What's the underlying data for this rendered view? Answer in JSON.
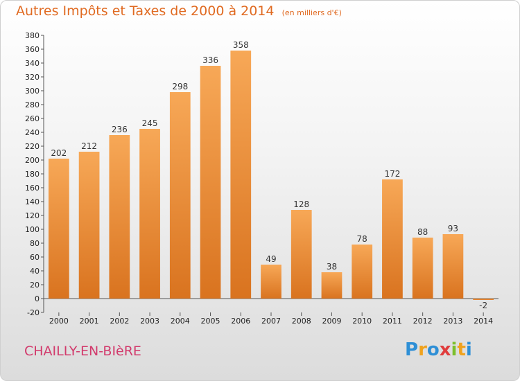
{
  "title": {
    "main": "Autres Impôts et Taxes de 2000 à 2014",
    "unit": "(en milliers d'€)"
  },
  "commune": "CHAILLY-EN-BIèRE",
  "logo": {
    "text": "Proxiti",
    "letters": [
      {
        "ch": "P",
        "color": "#2e8fd6"
      },
      {
        "ch": "r",
        "color": "#f0a21d"
      },
      {
        "ch": "o",
        "color": "#2e8fd6"
      },
      {
        "ch": "x",
        "color": "#e03c3c"
      },
      {
        "ch": "i",
        "color": "#7cbf2c"
      },
      {
        "ch": "t",
        "color": "#f0a21d"
      },
      {
        "ch": "i",
        "color": "#2e8fd6"
      }
    ]
  },
  "colors": {
    "bar_light": "#f7a857",
    "bar_dark": "#d9731f",
    "axis": "#555555",
    "grid": "#dddddd",
    "title": "#e06a21",
    "commune": "#d23a6c"
  },
  "chart_data": {
    "type": "bar",
    "title": "Autres Impôts et Taxes de 2000 à 2014",
    "subtitle": "(en milliers d'€)",
    "categories": [
      "2000",
      "2001",
      "2002",
      "2003",
      "2004",
      "2005",
      "2006",
      "2007",
      "2008",
      "2009",
      "2010",
      "2011",
      "2012",
      "2013",
      "2014"
    ],
    "values": [
      202,
      212,
      236,
      245,
      298,
      336,
      358,
      49,
      128,
      38,
      78,
      172,
      88,
      93,
      -2
    ],
    "ylim": [
      -20,
      380
    ],
    "ytick_step": 20,
    "yticks": [
      "-20",
      "0",
      "20",
      "40",
      "60",
      "80",
      "100",
      "120",
      "140",
      "160",
      "180",
      "200",
      "220",
      "240",
      "260",
      "280",
      "300",
      "320",
      "340",
      "360",
      "380"
    ],
    "grid": false,
    "legend": "none"
  }
}
